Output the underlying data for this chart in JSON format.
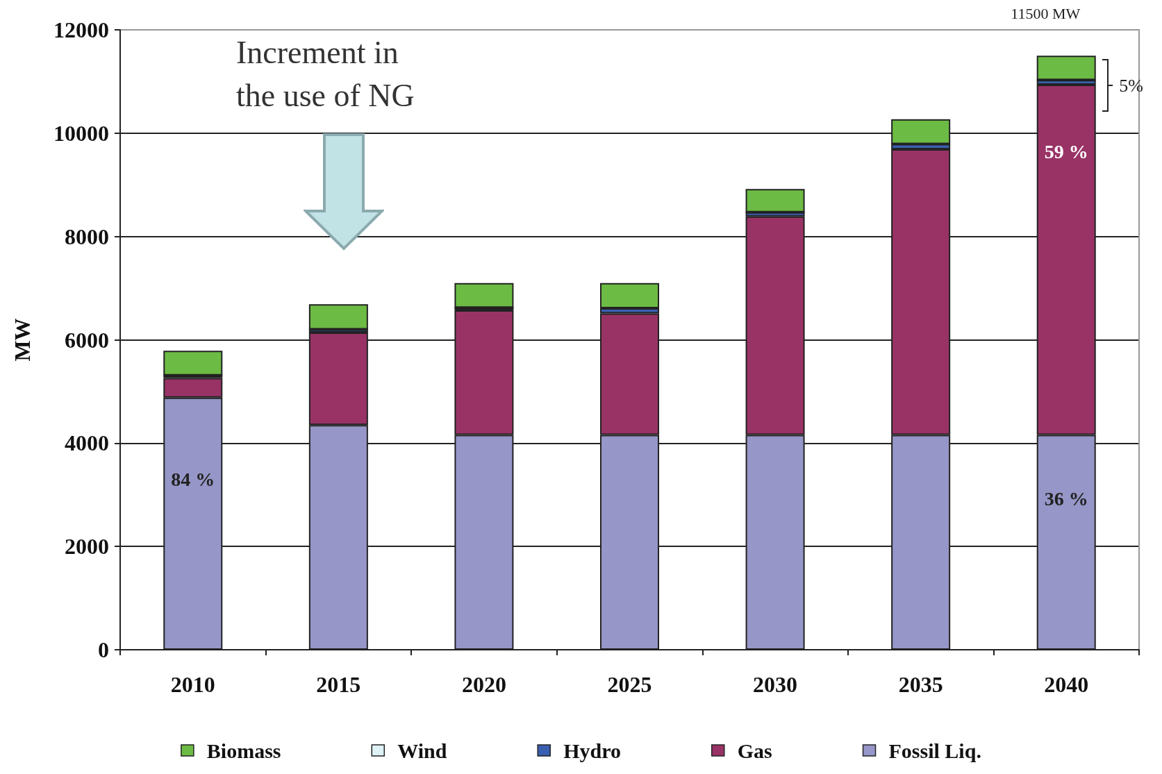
{
  "chart_data": {
    "type": "bar",
    "stacked": true,
    "ylabel": "MW",
    "categories": [
      "2010",
      "2015",
      "2020",
      "2025",
      "2030",
      "2035",
      "2040"
    ],
    "series": [
      {
        "name": "Fossil Liq.",
        "color": "#9696c8",
        "values": [
          4880,
          4350,
          4160,
          4160,
          4160,
          4160,
          4160
        ]
      },
      {
        "name": "Gas",
        "color": "#993366",
        "values": [
          380,
          1790,
          2410,
          2350,
          4230,
          5530,
          6780
        ]
      },
      {
        "name": "Hydro",
        "color": "#3a5fb0",
        "values": [
          50,
          60,
          50,
          100,
          80,
          100,
          90
        ]
      },
      {
        "name": "Wind",
        "color": "#dff2f5",
        "values": [
          0,
          0,
          0,
          0,
          0,
          0,
          0
        ]
      },
      {
        "name": "Biomass",
        "color": "#6cbb44",
        "values": [
          480,
          490,
          480,
          490,
          450,
          480,
          470
        ]
      }
    ],
    "ylim": [
      0,
      12000
    ],
    "yticks": [
      0,
      2000,
      4000,
      6000,
      8000,
      10000,
      12000
    ],
    "grid": "y",
    "legend": "bottom",
    "annotations": [
      "Increment in the use of NG",
      "84 %",
      "59 %",
      "36 %",
      {
        "text": "11500 MW",
        "x": "2040",
        "y": 11500
      },
      "5%"
    ]
  }
}
